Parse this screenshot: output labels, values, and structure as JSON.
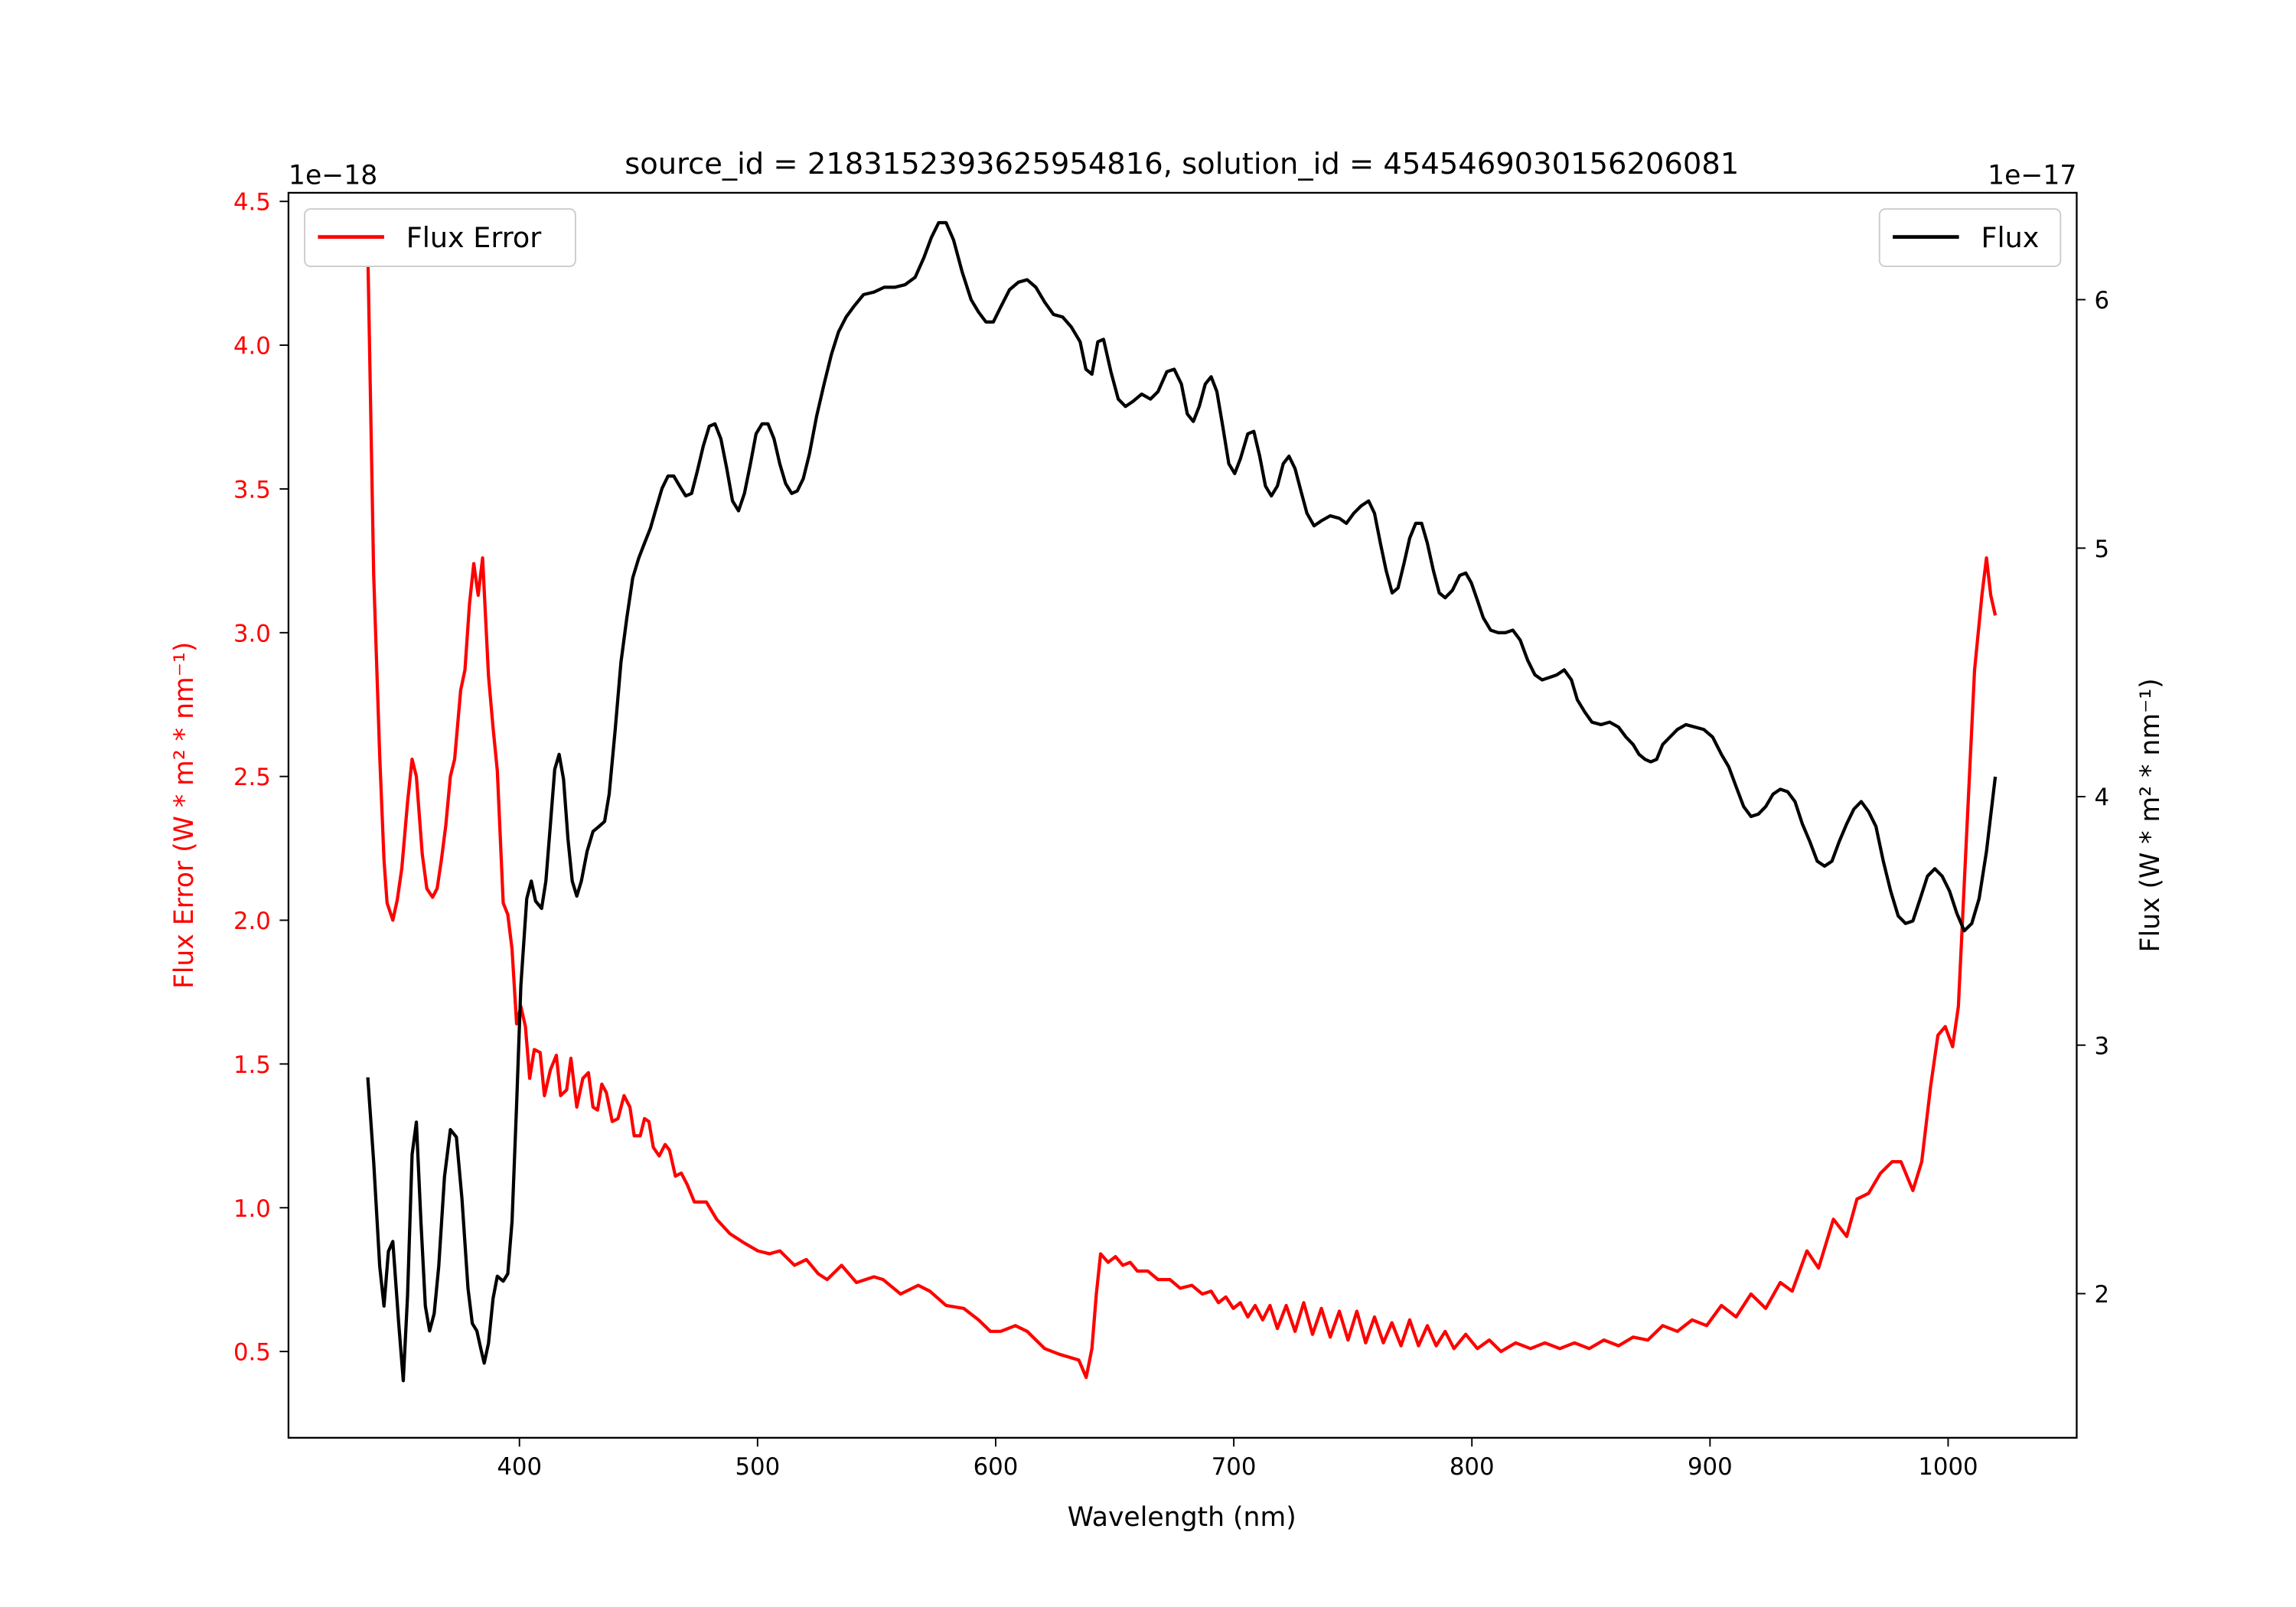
{
  "chart_data": {
    "type": "line",
    "title": "source_id = 2183152393625954816, solution_id = 4545469030156206081",
    "xlabel": "Wavelength (nm)",
    "ylabel_left": "Flux Error (W * m² * nm⁻¹)",
    "ylabel_right": "Flux (W * m² * nm⁻¹)",
    "offset_left": "1e−18",
    "offset_right": "1e−17",
    "xlim": [
      303,
      1054
    ],
    "ylim_left": [
      0.2,
      4.53
    ],
    "ylim_right": [
      1.42,
      6.43
    ],
    "xticks": [
      400,
      500,
      600,
      700,
      800,
      900,
      1000
    ],
    "yticks_left": [
      0.5,
      1.0,
      1.5,
      2.0,
      2.5,
      3.0,
      3.5,
      4.0,
      4.5
    ],
    "yticks_right": [
      2,
      3,
      4,
      5,
      6
    ],
    "grid": false,
    "colors": {
      "flux_error": "#ff0000",
      "flux": "#000000"
    },
    "legend_left": {
      "label": "Flux Error",
      "placement": "upper-left"
    },
    "legend_right": {
      "label": "Flux",
      "placement": "upper-right"
    },
    "series": [
      {
        "name": "Flux Error",
        "axis": "left",
        "color": "#ff0000",
        "x": [
          336.3,
          338.8,
          341.3,
          343.1,
          344.4,
          346.8,
          348.7,
          350.6,
          353,
          354.9,
          356.7,
          359.2,
          361.1,
          363.5,
          365.4,
          367.2,
          369.1,
          371,
          372.8,
          375.3,
          377.1,
          379,
          380.8,
          382.7,
          384.5,
          387,
          388.9,
          390.7,
          393.2,
          395.1,
          396.9,
          398.8,
          400.6,
          402.5,
          404.3,
          406.2,
          408.7,
          410.5,
          413,
          415.5,
          417.3,
          419.8,
          421.6,
          424.1,
          426.6,
          429,
          430.9,
          432.8,
          434.6,
          436.5,
          439,
          441.4,
          443.9,
          446.4,
          448.2,
          450.7,
          452.5,
          454.4,
          456.2,
          458.7,
          461.2,
          463,
          465.5,
          468,
          470.5,
          473.5,
          478.5,
          482.8,
          488.4,
          493.9,
          500.1,
          505,
          509.4,
          515.5,
          520.5,
          525.5,
          529.2,
          535.3,
          541.5,
          548.9,
          552.7,
          560.1,
          567.5,
          572.4,
          579.2,
          586.6,
          592.8,
          597.8,
          602.1,
          608.3,
          613.2,
          620.6,
          626.8,
          634.9,
          638,
          640.4,
          642.3,
          644.1,
          647.2,
          650.3,
          653.4,
          656.5,
          659.5,
          663.9,
          668.2,
          673.2,
          677.5,
          682.4,
          686.8,
          690.5,
          693.6,
          696.7,
          699.8,
          702.8,
          705.9,
          709,
          712.1,
          715.2,
          718.3,
          722,
          725.7,
          729.4,
          733.1,
          736.8,
          740.5,
          744.3,
          748,
          751.7,
          755.4,
          759.1,
          762.8,
          766.4,
          770.2,
          773.9,
          777.6,
          781.3,
          785,
          788.8,
          792.5,
          797.4,
          802.3,
          807.3,
          812.2,
          818.4,
          824.6,
          830.7,
          836.9,
          843.1,
          849.3,
          855.4,
          861.6,
          867.7,
          873.9,
          880.1,
          886.3,
          892.5,
          898.6,
          904.8,
          911,
          917.2,
          923.4,
          929.5,
          934.5,
          940.7,
          945.6,
          951.8,
          957.4,
          961.7,
          966.6,
          971.6,
          976.5,
          980.2,
          985.2,
          988.9,
          992.6,
          995.7,
          998.8,
          1001.9,
          1004.3,
          1008,
          1011.1,
          1014.2,
          1016.1,
          1017.9,
          1019.8
        ],
        "y": [
          4.33,
          3.2,
          2.57,
          2.21,
          2.06,
          2.0,
          2.07,
          2.18,
          2.41,
          2.56,
          2.5,
          2.23,
          2.11,
          2.08,
          2.11,
          2.21,
          2.33,
          2.5,
          2.56,
          2.8,
          2.87,
          3.1,
          3.24,
          3.13,
          3.26,
          2.85,
          2.67,
          2.52,
          2.06,
          2.02,
          1.9,
          1.64,
          1.7,
          1.63,
          1.45,
          1.55,
          1.54,
          1.39,
          1.48,
          1.53,
          1.39,
          1.41,
          1.52,
          1.35,
          1.45,
          1.47,
          1.35,
          1.34,
          1.43,
          1.4,
          1.3,
          1.31,
          1.39,
          1.35,
          1.25,
          1.25,
          1.31,
          1.3,
          1.21,
          1.18,
          1.22,
          1.2,
          1.11,
          1.12,
          1.08,
          1.02,
          1.02,
          0.96,
          0.91,
          0.88,
          0.85,
          0.84,
          0.85,
          0.8,
          0.82,
          0.77,
          0.75,
          0.8,
          0.74,
          0.76,
          0.75,
          0.7,
          0.73,
          0.71,
          0.66,
          0.65,
          0.61,
          0.57,
          0.57,
          0.59,
          0.57,
          0.51,
          0.49,
          0.47,
          0.41,
          0.51,
          0.7,
          0.84,
          0.81,
          0.83,
          0.8,
          0.81,
          0.78,
          0.78,
          0.75,
          0.75,
          0.72,
          0.73,
          0.7,
          0.71,
          0.67,
          0.69,
          0.65,
          0.67,
          0.62,
          0.66,
          0.61,
          0.66,
          0.58,
          0.66,
          0.57,
          0.67,
          0.56,
          0.65,
          0.55,
          0.64,
          0.54,
          0.64,
          0.53,
          0.62,
          0.53,
          0.6,
          0.52,
          0.61,
          0.52,
          0.59,
          0.52,
          0.57,
          0.51,
          0.56,
          0.51,
          0.54,
          0.5,
          0.53,
          0.51,
          0.53,
          0.51,
          0.53,
          0.51,
          0.54,
          0.52,
          0.55,
          0.54,
          0.59,
          0.57,
          0.61,
          0.59,
          0.66,
          0.62,
          0.7,
          0.65,
          0.74,
          0.71,
          0.85,
          0.79,
          0.96,
          0.9,
          1.03,
          1.05,
          1.12,
          1.16,
          1.16,
          1.06,
          1.16,
          1.42,
          1.6,
          1.63,
          1.56,
          1.7,
          2.34,
          2.87,
          3.13,
          3.26,
          3.13,
          3.06
        ]
      },
      {
        "name": "Flux",
        "axis": "right",
        "color": "#000000",
        "x": [
          336.3,
          338.8,
          341.3,
          343.1,
          345,
          346.8,
          349.3,
          351.2,
          353,
          354.9,
          356.7,
          358.6,
          360.5,
          362.3,
          364.2,
          366.1,
          368.5,
          371,
          373.5,
          375.9,
          378.4,
          380.2,
          382.1,
          384,
          385.2,
          387,
          388.9,
          390.7,
          393.2,
          395.1,
          396.9,
          398.8,
          400.6,
          403.1,
          405,
          406.8,
          409.3,
          411.1,
          413,
          414.8,
          416.7,
          418.5,
          420.4,
          422.2,
          424.1,
          426,
          428.4,
          430.9,
          433.4,
          435.8,
          437.7,
          440.2,
          442.6,
          445.1,
          447.6,
          450.1,
          452.5,
          455,
          457.4,
          459.9,
          462.4,
          464.8,
          467.3,
          469.8,
          472.3,
          474.7,
          477.2,
          479.7,
          482.1,
          484.6,
          487.1,
          489.5,
          492,
          494.5,
          497,
          499.4,
          501.9,
          504.4,
          506.9,
          509.3,
          511.8,
          514.3,
          516.7,
          519.2,
          521.8,
          524.8,
          527.9,
          531,
          534,
          537.2,
          540.2,
          544.5,
          548.9,
          553.2,
          557.6,
          561.9,
          566.2,
          569.9,
          573,
          576.1,
          579.2,
          582.3,
          586,
          589.7,
          592.8,
          595.9,
          599,
          602.1,
          605.8,
          609.5,
          613.2,
          616.9,
          620.6,
          624.3,
          628.1,
          631.8,
          635.5,
          637.9,
          640.4,
          642.9,
          645.3,
          648.4,
          651.5,
          654.5,
          657.6,
          661.3,
          665,
          668.2,
          671.9,
          675,
          678,
          680.5,
          683,
          685.5,
          688,
          690.5,
          692.9,
          695.4,
          697.9,
          700.4,
          702.8,
          705.9,
          708.4,
          710.9,
          713.3,
          715.8,
          718.3,
          720.8,
          723.2,
          725.7,
          728.2,
          730.7,
          733.7,
          736.8,
          740.5,
          744.3,
          747.3,
          750.4,
          753.5,
          756.6,
          759.1,
          761.6,
          764,
          766.5,
          769,
          771.5,
          773.9,
          776.4,
          778.9,
          781.3,
          783.8,
          786.3,
          788.8,
          791.8,
          794.9,
          797.4,
          799.8,
          802.3,
          804.8,
          807.9,
          811,
          814.1,
          817.2,
          820.3,
          823.4,
          826.5,
          829.5,
          832.6,
          835.7,
          838.8,
          841.8,
          844.3,
          847.4,
          850.4,
          854.2,
          857.9,
          861.6,
          864.7,
          867.7,
          870.2,
          872.7,
          875.1,
          877.6,
          880.1,
          883.2,
          886.3,
          889.9,
          893.7,
          897.4,
          901.1,
          904.8,
          907.9,
          911,
          914.1,
          917.2,
          920.3,
          923.4,
          926.5,
          929.5,
          932.6,
          935.7,
          938.8,
          941.9,
          945,
          948.1,
          951.2,
          954.3,
          957.4,
          960.4,
          963.5,
          966.6,
          969.7,
          972.8,
          975.9,
          979,
          982.1,
          985.2,
          988.3,
          991.3,
          994.4,
          997.5,
          1000.6,
          1003.7,
          1006.8,
          1009.9,
          1013,
          1016.1,
          1019.8
        ],
        "y": [
          2.87,
          2.53,
          2.11,
          1.95,
          2.17,
          2.21,
          1.88,
          1.65,
          1.99,
          2.56,
          2.69,
          2.29,
          1.95,
          1.85,
          1.92,
          2.11,
          2.47,
          2.66,
          2.63,
          2.38,
          2.02,
          1.88,
          1.85,
          1.77,
          1.72,
          1.8,
          1.98,
          2.07,
          2.05,
          2.08,
          2.29,
          2.76,
          3.24,
          3.59,
          3.66,
          3.58,
          3.55,
          3.66,
          3.89,
          4.11,
          4.17,
          4.07,
          3.83,
          3.66,
          3.6,
          3.66,
          3.78,
          3.86,
          3.88,
          3.9,
          4.01,
          4.27,
          4.54,
          4.72,
          4.88,
          4.96,
          5.02,
          5.08,
          5.16,
          5.24,
          5.29,
          5.29,
          5.25,
          5.21,
          5.22,
          5.31,
          5.41,
          5.49,
          5.5,
          5.44,
          5.32,
          5.19,
          5.15,
          5.22,
          5.34,
          5.46,
          5.5,
          5.5,
          5.44,
          5.34,
          5.26,
          5.22,
          5.23,
          5.28,
          5.38,
          5.53,
          5.66,
          5.78,
          5.87,
          5.93,
          5.97,
          6.02,
          6.03,
          6.05,
          6.05,
          6.06,
          6.09,
          6.17,
          6.25,
          6.31,
          6.31,
          6.24,
          6.11,
          6.0,
          5.95,
          5.91,
          5.91,
          5.97,
          6.04,
          6.07,
          6.08,
          6.05,
          5.99,
          5.94,
          5.93,
          5.89,
          5.83,
          5.72,
          5.7,
          5.83,
          5.84,
          5.71,
          5.6,
          5.57,
          5.59,
          5.62,
          5.6,
          5.63,
          5.71,
          5.72,
          5.66,
          5.54,
          5.51,
          5.57,
          5.66,
          5.69,
          5.63,
          5.49,
          5.34,
          5.3,
          5.36,
          5.46,
          5.47,
          5.37,
          5.25,
          5.21,
          5.25,
          5.34,
          5.37,
          5.32,
          5.23,
          5.14,
          5.09,
          5.11,
          5.13,
          5.12,
          5.1,
          5.14,
          5.17,
          5.19,
          5.14,
          5.02,
          4.91,
          4.82,
          4.84,
          4.94,
          5.04,
          5.1,
          5.1,
          5.02,
          4.91,
          4.82,
          4.8,
          4.83,
          4.89,
          4.9,
          4.86,
          4.79,
          4.72,
          4.67,
          4.66,
          4.66,
          4.67,
          4.63,
          4.55,
          4.49,
          4.47,
          4.48,
          4.49,
          4.51,
          4.47,
          4.39,
          4.34,
          4.3,
          4.29,
          4.3,
          4.28,
          4.24,
          4.21,
          4.17,
          4.15,
          4.14,
          4.15,
          4.21,
          4.24,
          4.27,
          4.29,
          4.28,
          4.27,
          4.24,
          4.17,
          4.12,
          4.04,
          3.96,
          3.92,
          3.93,
          3.96,
          4.01,
          4.03,
          4.02,
          3.98,
          3.89,
          3.82,
          3.74,
          3.72,
          3.74,
          3.82,
          3.89,
          3.95,
          3.98,
          3.94,
          3.88,
          3.74,
          3.62,
          3.52,
          3.49,
          3.5,
          3.59,
          3.68,
          3.71,
          3.68,
          3.62,
          3.53,
          3.46,
          3.49,
          3.59,
          3.78,
          4.08
        ]
      }
    ]
  }
}
